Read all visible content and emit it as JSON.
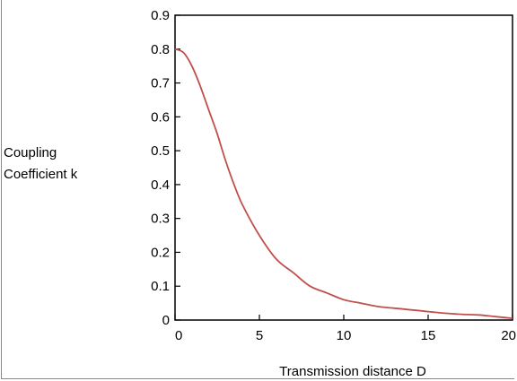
{
  "chart_data": {
    "type": "line",
    "title": "",
    "xlabel": "Transmission distance D",
    "ylabel_lines": [
      "Coupling",
      "Coefficient k"
    ],
    "xlim": [
      0,
      20
    ],
    "ylim": [
      0,
      0.9
    ],
    "x_ticks": [
      0,
      5,
      10,
      15,
      20
    ],
    "x_tick_labels": [
      "0",
      "5",
      "10",
      "15",
      "20"
    ],
    "y_ticks": [
      0,
      0.1,
      0.2,
      0.3,
      0.4,
      0.5,
      0.6,
      0.7,
      0.8,
      0.9
    ],
    "y_tick_labels": [
      "0",
      "0.1",
      "0.2",
      "0.3",
      "0.4",
      "0.5",
      "0.6",
      "0.7",
      "0.8",
      "0.9"
    ],
    "grid": false,
    "series": [
      {
        "color": "#c0504d",
        "x": [
          0,
          0.5,
          1,
          1.5,
          2,
          2.5,
          3,
          3.5,
          4,
          5,
          6,
          7,
          8,
          9,
          10,
          11,
          12,
          13,
          14,
          15,
          16,
          17,
          18,
          19,
          20
        ],
        "y": [
          0.8,
          0.79,
          0.75,
          0.69,
          0.62,
          0.55,
          0.47,
          0.4,
          0.34,
          0.25,
          0.18,
          0.14,
          0.1,
          0.08,
          0.06,
          0.05,
          0.04,
          0.035,
          0.03,
          0.025,
          0.02,
          0.017,
          0.015,
          0.01,
          0.005
        ]
      }
    ]
  }
}
